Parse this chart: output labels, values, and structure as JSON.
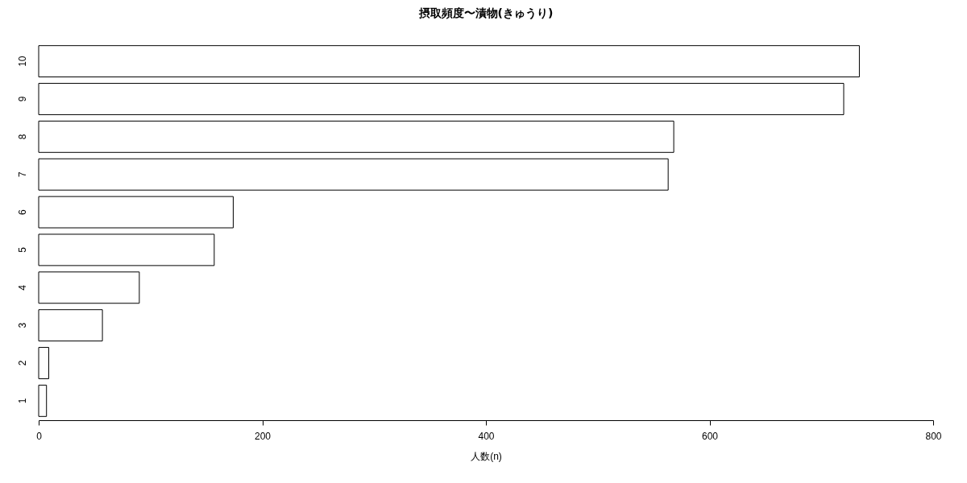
{
  "chart_data": {
    "type": "bar",
    "orientation": "horizontal",
    "title": "摂取頻度〜漬物(きゅうり)",
    "xlabel": "人数(n)",
    "categories": [
      "10",
      "9",
      "8",
      "7",
      "6",
      "5",
      "4",
      "3",
      "2",
      "1"
    ],
    "values": [
      734,
      720,
      568,
      563,
      174,
      157,
      90,
      57,
      9,
      7
    ],
    "color": "#ffffff",
    "xlim": [
      0,
      800
    ],
    "xticks": [
      0,
      200,
      400,
      600,
      800
    ],
    "grid": false
  }
}
